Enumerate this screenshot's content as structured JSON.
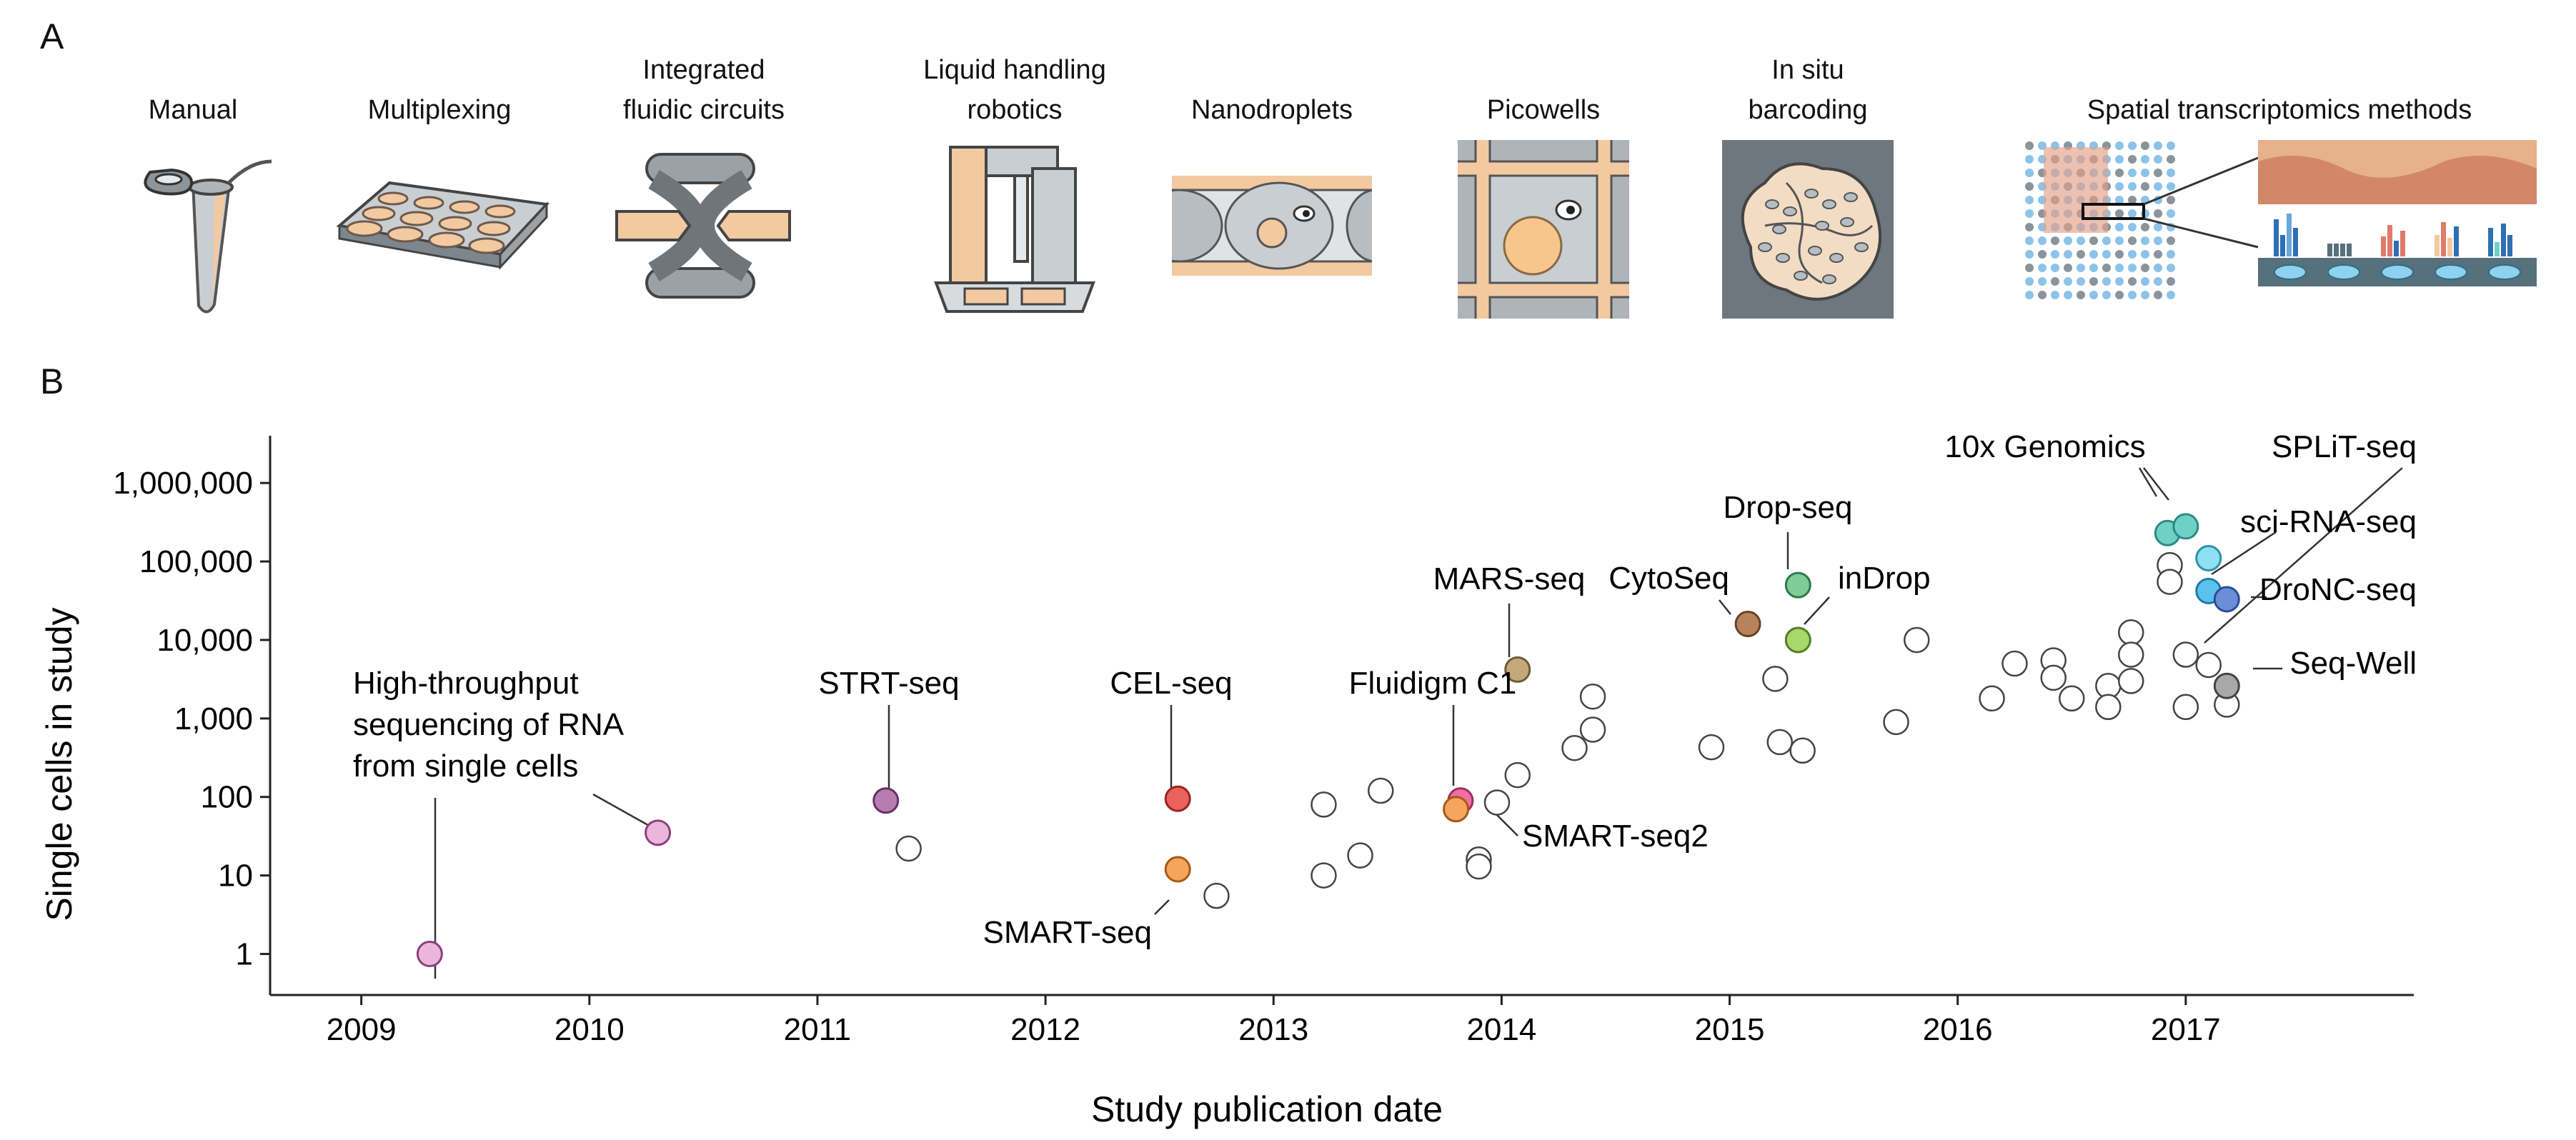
{
  "panel_a": {
    "letter": "A",
    "steps": [
      {
        "label": "Manual",
        "icon": "tube-icon"
      },
      {
        "label": "Multiplexing",
        "icon": "well-plate-icon"
      },
      {
        "label": "Integrated\nfluidic circuits",
        "icon": "fluidic-circuit-icon"
      },
      {
        "label": "Liquid handling\nrobotics",
        "icon": "robot-icon"
      },
      {
        "label": "Nanodroplets",
        "icon": "droplet-icon"
      },
      {
        "label": "Picowells",
        "icon": "picowell-icon"
      },
      {
        "label": "In situ\nbarcoding",
        "icon": "barcoding-icon"
      },
      {
        "label": "Spatial transcriptomics methods",
        "icon": "spatial-array-icon"
      }
    ]
  },
  "panel_b": {
    "letter": "B"
  },
  "colors": {
    "tan": "#f3c9a1",
    "steel": "#a5acb2",
    "steel_dark": "#5f676d",
    "axis": "#222222",
    "open_marker": "#ffffff"
  },
  "chart_data": {
    "type": "scatter",
    "xlabel": "Study publication date",
    "ylabel": "Single cells in study",
    "xlim": [
      2008.6,
      2018.0
    ],
    "ylim": [
      0.3,
      4000000
    ],
    "y_scale": "log",
    "grid": false,
    "x_ticks": [
      2009,
      2010,
      2011,
      2012,
      2013,
      2014,
      2015,
      2016,
      2017
    ],
    "x_tick_labels": [
      "2009",
      "2010",
      "2011",
      "2012",
      "2013",
      "2014",
      "2015",
      "2016",
      "2017"
    ],
    "y_ticks": [
      1,
      10,
      100,
      1000,
      10000,
      100000,
      1000000
    ],
    "y_tick_labels": [
      "1",
      "10",
      "100",
      "1,000",
      "10,000",
      "100,000",
      "1,000,000"
    ],
    "highlighted": [
      {
        "label": "High-throughput\nsequencing of RNA\nfrom single cells",
        "x": 2009.3,
        "y": 1,
        "color": "#eab7dc",
        "stroke": "#8e3f7c"
      },
      {
        "label": "",
        "x": 2010.3,
        "y": 35,
        "color": "#eab7dc",
        "stroke": "#8e3f7c"
      },
      {
        "label": "STRT-seq",
        "x": 2011.3,
        "y": 90,
        "color": "#b57db0",
        "stroke": "#6a2f66"
      },
      {
        "label": "CEL-seq",
        "x": 2012.58,
        "y": 95,
        "color": "#e9625b",
        "stroke": "#9a2520"
      },
      {
        "label": "SMART-seq",
        "x": 2012.58,
        "y": 12,
        "color": "#f6a55c",
        "stroke": "#a55a16"
      },
      {
        "label": "MARS-seq",
        "x": 2014.07,
        "y": 4200,
        "color": "#c4a87c",
        "stroke": "#6f5a36"
      },
      {
        "label": "Fluidigm C1",
        "x": 2013.82,
        "y": 90,
        "color": "#ef6fa3",
        "stroke": "#a02d5d"
      },
      {
        "label": "SMART-seq2",
        "x": 2013.8,
        "y": 70,
        "color": "#f6a55c",
        "stroke": "#a55a16"
      },
      {
        "label": "CytoSeq",
        "x": 2015.08,
        "y": 16000,
        "color": "#b8825d",
        "stroke": "#6b4227"
      },
      {
        "label": "Drop-seq",
        "x": 2015.3,
        "y": 50000,
        "color": "#7fcc98",
        "stroke": "#2d7a4a"
      },
      {
        "label": "inDrop",
        "x": 2015.3,
        "y": 10000,
        "color": "#a6d86a",
        "stroke": "#567d26"
      },
      {
        "label": "10x Genomics",
        "x": 2016.92,
        "y": 230000,
        "color": "#6fd0c8",
        "stroke": "#2c8a84"
      },
      {
        "label": "10x Genomics",
        "x": 2017.0,
        "y": 280000,
        "color": "#6fd0c8",
        "stroke": "#2c8a84"
      },
      {
        "label": "SPLiT-seq",
        "x": 2017.1,
        "y": 110000,
        "color": "#8fe0f3",
        "stroke": "#2d90ad"
      },
      {
        "label": "sci-RNA-seq",
        "x": 2017.1,
        "y": 42000,
        "color": "#5ac2ec",
        "stroke": "#1f78a8"
      },
      {
        "label": "DroNC-seq",
        "x": 2017.18,
        "y": 33000,
        "color": "#6c8ed6",
        "stroke": "#2b4c99"
      },
      {
        "label": "Seq-Well",
        "x": 2017.18,
        "y": 2600,
        "color": "#a8a8a8",
        "stroke": "#444444"
      }
    ],
    "other_studies": [
      {
        "x": 2011.4,
        "y": 22
      },
      {
        "x": 2012.75,
        "y": 5.5
      },
      {
        "x": 2013.22,
        "y": 80
      },
      {
        "x": 2013.22,
        "y": 10
      },
      {
        "x": 2013.38,
        "y": 18
      },
      {
        "x": 2013.47,
        "y": 120
      },
      {
        "x": 2013.9,
        "y": 16
      },
      {
        "x": 2013.9,
        "y": 13
      },
      {
        "x": 2013.98,
        "y": 85
      },
      {
        "x": 2014.07,
        "y": 190
      },
      {
        "x": 2014.32,
        "y": 420
      },
      {
        "x": 2014.4,
        "y": 1900
      },
      {
        "x": 2014.4,
        "y": 720
      },
      {
        "x": 2014.92,
        "y": 430
      },
      {
        "x": 2015.2,
        "y": 3200
      },
      {
        "x": 2015.22,
        "y": 500
      },
      {
        "x": 2015.32,
        "y": 390
      },
      {
        "x": 2015.73,
        "y": 900
      },
      {
        "x": 2015.82,
        "y": 10000
      },
      {
        "x": 2016.15,
        "y": 1800
      },
      {
        "x": 2016.25,
        "y": 5000
      },
      {
        "x": 2016.42,
        "y": 5500
      },
      {
        "x": 2016.42,
        "y": 3300
      },
      {
        "x": 2016.5,
        "y": 1800
      },
      {
        "x": 2016.66,
        "y": 2600
      },
      {
        "x": 2016.66,
        "y": 1400
      },
      {
        "x": 2016.76,
        "y": 12500
      },
      {
        "x": 2016.76,
        "y": 6500
      },
      {
        "x": 2016.76,
        "y": 3000
      },
      {
        "x": 2016.93,
        "y": 90000
      },
      {
        "x": 2016.93,
        "y": 55000
      },
      {
        "x": 2017.0,
        "y": 6500
      },
      {
        "x": 2017.0,
        "y": 1400
      },
      {
        "x": 2017.1,
        "y": 4800
      },
      {
        "x": 2017.18,
        "y": 1500
      }
    ]
  }
}
